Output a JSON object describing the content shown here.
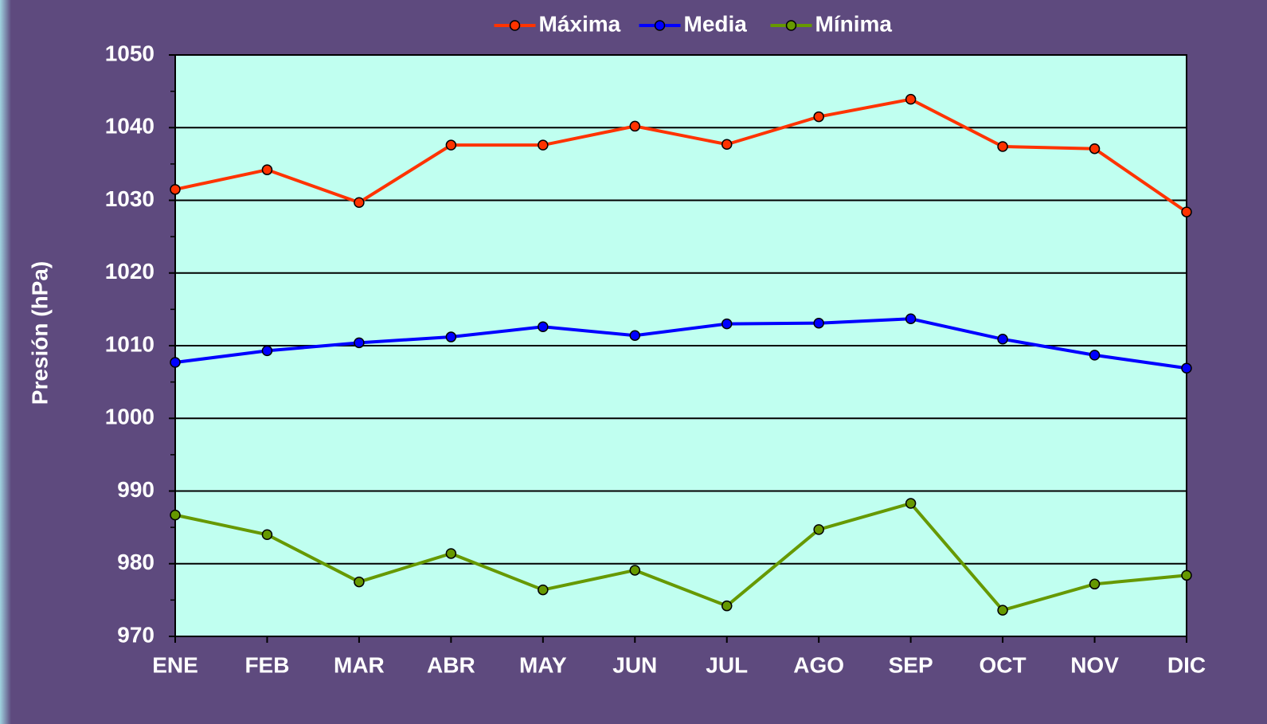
{
  "chart_data": {
    "type": "line",
    "y_label": "Presión (hPa)",
    "categories": [
      "ENE",
      "FEB",
      "MAR",
      "ABR",
      "MAY",
      "JUN",
      "JUL",
      "AGO",
      "SEP",
      "OCT",
      "NOV",
      "DIC"
    ],
    "series": [
      {
        "name": "Máxima",
        "color": "#ff3300",
        "values": [
          1031.5,
          1034.2,
          1029.7,
          1037.6,
          1037.6,
          1040.2,
          1037.7,
          1041.5,
          1043.9,
          1037.4,
          1037.1,
          1028.4
        ]
      },
      {
        "name": "Media",
        "color": "#0000ff",
        "values": [
          1007.7,
          1009.3,
          1010.4,
          1011.2,
          1012.6,
          1011.4,
          1013.0,
          1013.1,
          1013.7,
          1010.9,
          1008.7,
          1006.9
        ]
      },
      {
        "name": "Mínima",
        "color": "#669900",
        "values": [
          986.7,
          984.0,
          977.5,
          981.4,
          976.4,
          979.1,
          974.2,
          984.7,
          988.3,
          973.6,
          977.2,
          978.4
        ]
      }
    ],
    "ylim": [
      970,
      1050
    ],
    "yticks": [
      970,
      980,
      990,
      1000,
      1010,
      1020,
      1030,
      1040,
      1050
    ],
    "grid": true,
    "legend": "top"
  }
}
